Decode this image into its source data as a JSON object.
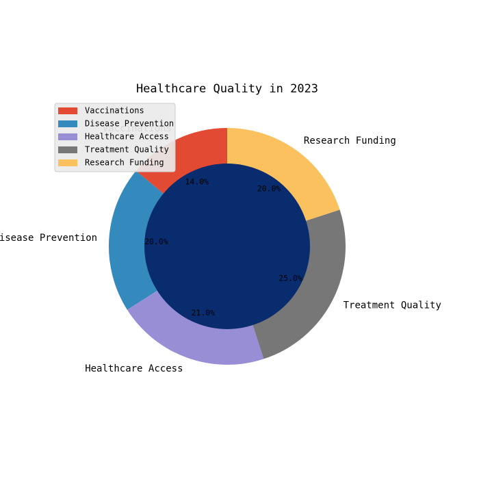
{
  "chart_data": {
    "type": "pie",
    "title": "Healthcare Quality in 2023",
    "categories": [
      "Vaccinations",
      "Disease Prevention",
      "Healthcare Access",
      "Treatment Quality",
      "Research Funding"
    ],
    "values": [
      14.0,
      20.0,
      21.0,
      25.0,
      20.0
    ],
    "percent_labels": [
      "14.0%",
      "20.0%",
      "21.0%",
      "25.0%",
      "20.0%"
    ],
    "colors": [
      "#E24A33",
      "#348ABD",
      "#988ED5",
      "#777777",
      "#FBC15E"
    ],
    "center_color": "#082C6E",
    "start_angle_deg": 90,
    "direction": "counterclockwise",
    "legend_placement": "upper-left"
  }
}
